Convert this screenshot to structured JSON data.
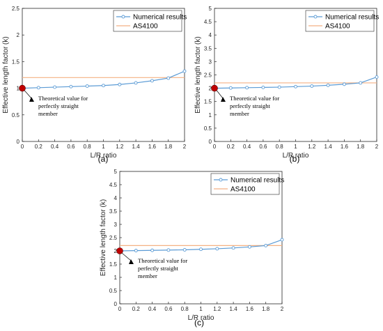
{
  "colors": {
    "numerical": "#5b9bd5",
    "as4100": "#f4b183",
    "marker_fill": "#c00000",
    "axis": "#262626"
  },
  "chart_data": [
    {
      "type": "line",
      "caption": "(a)",
      "xlabel": "L/R ratio",
      "ylabel": "Effective length factor (k)",
      "xlim": [
        0,
        2
      ],
      "ylim": [
        0,
        2.5
      ],
      "x_ticks": [
        "0",
        "0.2",
        "0.4",
        "0.6",
        "0.8",
        "1",
        "1.2",
        "1.4",
        "1.6",
        "1.8",
        "2"
      ],
      "y_ticks": [
        "0",
        "0.5",
        "1",
        "1.5",
        "2",
        "2.5"
      ],
      "x_tick_values": [
        0,
        0.2,
        0.4,
        0.6,
        0.8,
        1,
        1.2,
        1.4,
        1.6,
        1.8,
        2
      ],
      "y_tick_values": [
        0,
        0.5,
        1,
        1.5,
        2,
        2.5
      ],
      "grid": false,
      "legend_position": "top-right",
      "series": [
        {
          "name": "Numerical results",
          "marker": "circle",
          "x": [
            0,
            0.2,
            0.4,
            0.6,
            0.8,
            1,
            1.2,
            1.4,
            1.6,
            1.8,
            2
          ],
          "values": [
            1.0,
            1.01,
            1.02,
            1.03,
            1.04,
            1.05,
            1.07,
            1.1,
            1.14,
            1.19,
            1.32
          ]
        },
        {
          "name": "AS4100",
          "marker": "none",
          "x": [
            0,
            2
          ],
          "values": [
            1.2,
            1.2
          ]
        }
      ],
      "highlight_point": {
        "x": 0,
        "y": 1.0
      },
      "annotation": {
        "lines": [
          "Theoretical value for",
          "perfectly straight",
          "member"
        ]
      }
    },
    {
      "type": "line",
      "caption": "(b)",
      "xlabel": "L/R ratio",
      "ylabel": "Effective length factor (k)",
      "xlim": [
        0,
        2
      ],
      "ylim": [
        0,
        5
      ],
      "x_ticks": [
        "0",
        "0.2",
        "0.4",
        "0.6",
        "0.8",
        "1",
        "1.2",
        "1.4",
        "1.6",
        "1.8",
        "2"
      ],
      "y_ticks": [
        "0",
        "0.5",
        "1",
        "1.5",
        "2",
        "2.5",
        "3",
        "3.5",
        "4",
        "4.5",
        "5"
      ],
      "x_tick_values": [
        0,
        0.2,
        0.4,
        0.6,
        0.8,
        1,
        1.2,
        1.4,
        1.6,
        1.8,
        2
      ],
      "y_tick_values": [
        0,
        0.5,
        1,
        1.5,
        2,
        2.5,
        3,
        3.5,
        4,
        4.5,
        5
      ],
      "grid": false,
      "legend_position": "top-right",
      "series": [
        {
          "name": "Numerical results",
          "marker": "circle",
          "x": [
            0,
            0.2,
            0.4,
            0.6,
            0.8,
            1,
            1.2,
            1.4,
            1.6,
            1.8,
            2
          ],
          "values": [
            2.0,
            2.01,
            2.02,
            2.03,
            2.04,
            2.06,
            2.08,
            2.11,
            2.15,
            2.2,
            2.42
          ]
        },
        {
          "name": "AS4100",
          "marker": "none",
          "x": [
            0,
            2
          ],
          "values": [
            2.2,
            2.2
          ]
        }
      ],
      "highlight_point": {
        "x": 0,
        "y": 2.0
      },
      "annotation": {
        "lines": [
          "Theoretical value for",
          "perfectly straight",
          "member"
        ]
      }
    },
    {
      "type": "line",
      "caption": "(c)",
      "xlabel": "L/R ratio",
      "ylabel": "Effective length factor (k)",
      "xlim": [
        0,
        2
      ],
      "ylim": [
        0,
        5
      ],
      "x_ticks": [
        "0",
        "0.2",
        "0.4",
        "0.6",
        "0.8",
        "1",
        "1.2",
        "1.4",
        "1.6",
        "1.8",
        "2"
      ],
      "y_ticks": [
        "0",
        "0.5",
        "1",
        "1.5",
        "2",
        "2.5",
        "3",
        "3.5",
        "4",
        "4.5",
        "5"
      ],
      "x_tick_values": [
        0,
        0.2,
        0.4,
        0.6,
        0.8,
        1,
        1.2,
        1.4,
        1.6,
        1.8,
        2
      ],
      "y_tick_values": [
        0,
        0.5,
        1,
        1.5,
        2,
        2.5,
        3,
        3.5,
        4,
        4.5,
        5
      ],
      "grid": false,
      "legend_position": "top-right",
      "series": [
        {
          "name": "Numerical results",
          "marker": "circle",
          "x": [
            0,
            0.2,
            0.4,
            0.6,
            0.8,
            1,
            1.2,
            1.4,
            1.6,
            1.8,
            2
          ],
          "values": [
            2.0,
            2.01,
            2.02,
            2.03,
            2.04,
            2.06,
            2.08,
            2.11,
            2.15,
            2.2,
            2.42
          ]
        },
        {
          "name": "AS4100",
          "marker": "none",
          "x": [
            0,
            2
          ],
          "values": [
            2.2,
            2.2
          ]
        }
      ],
      "highlight_point": {
        "x": 0,
        "y": 2.0
      },
      "annotation": {
        "lines": [
          "Theoretical value for",
          "perfectly straight",
          "member"
        ]
      }
    }
  ]
}
